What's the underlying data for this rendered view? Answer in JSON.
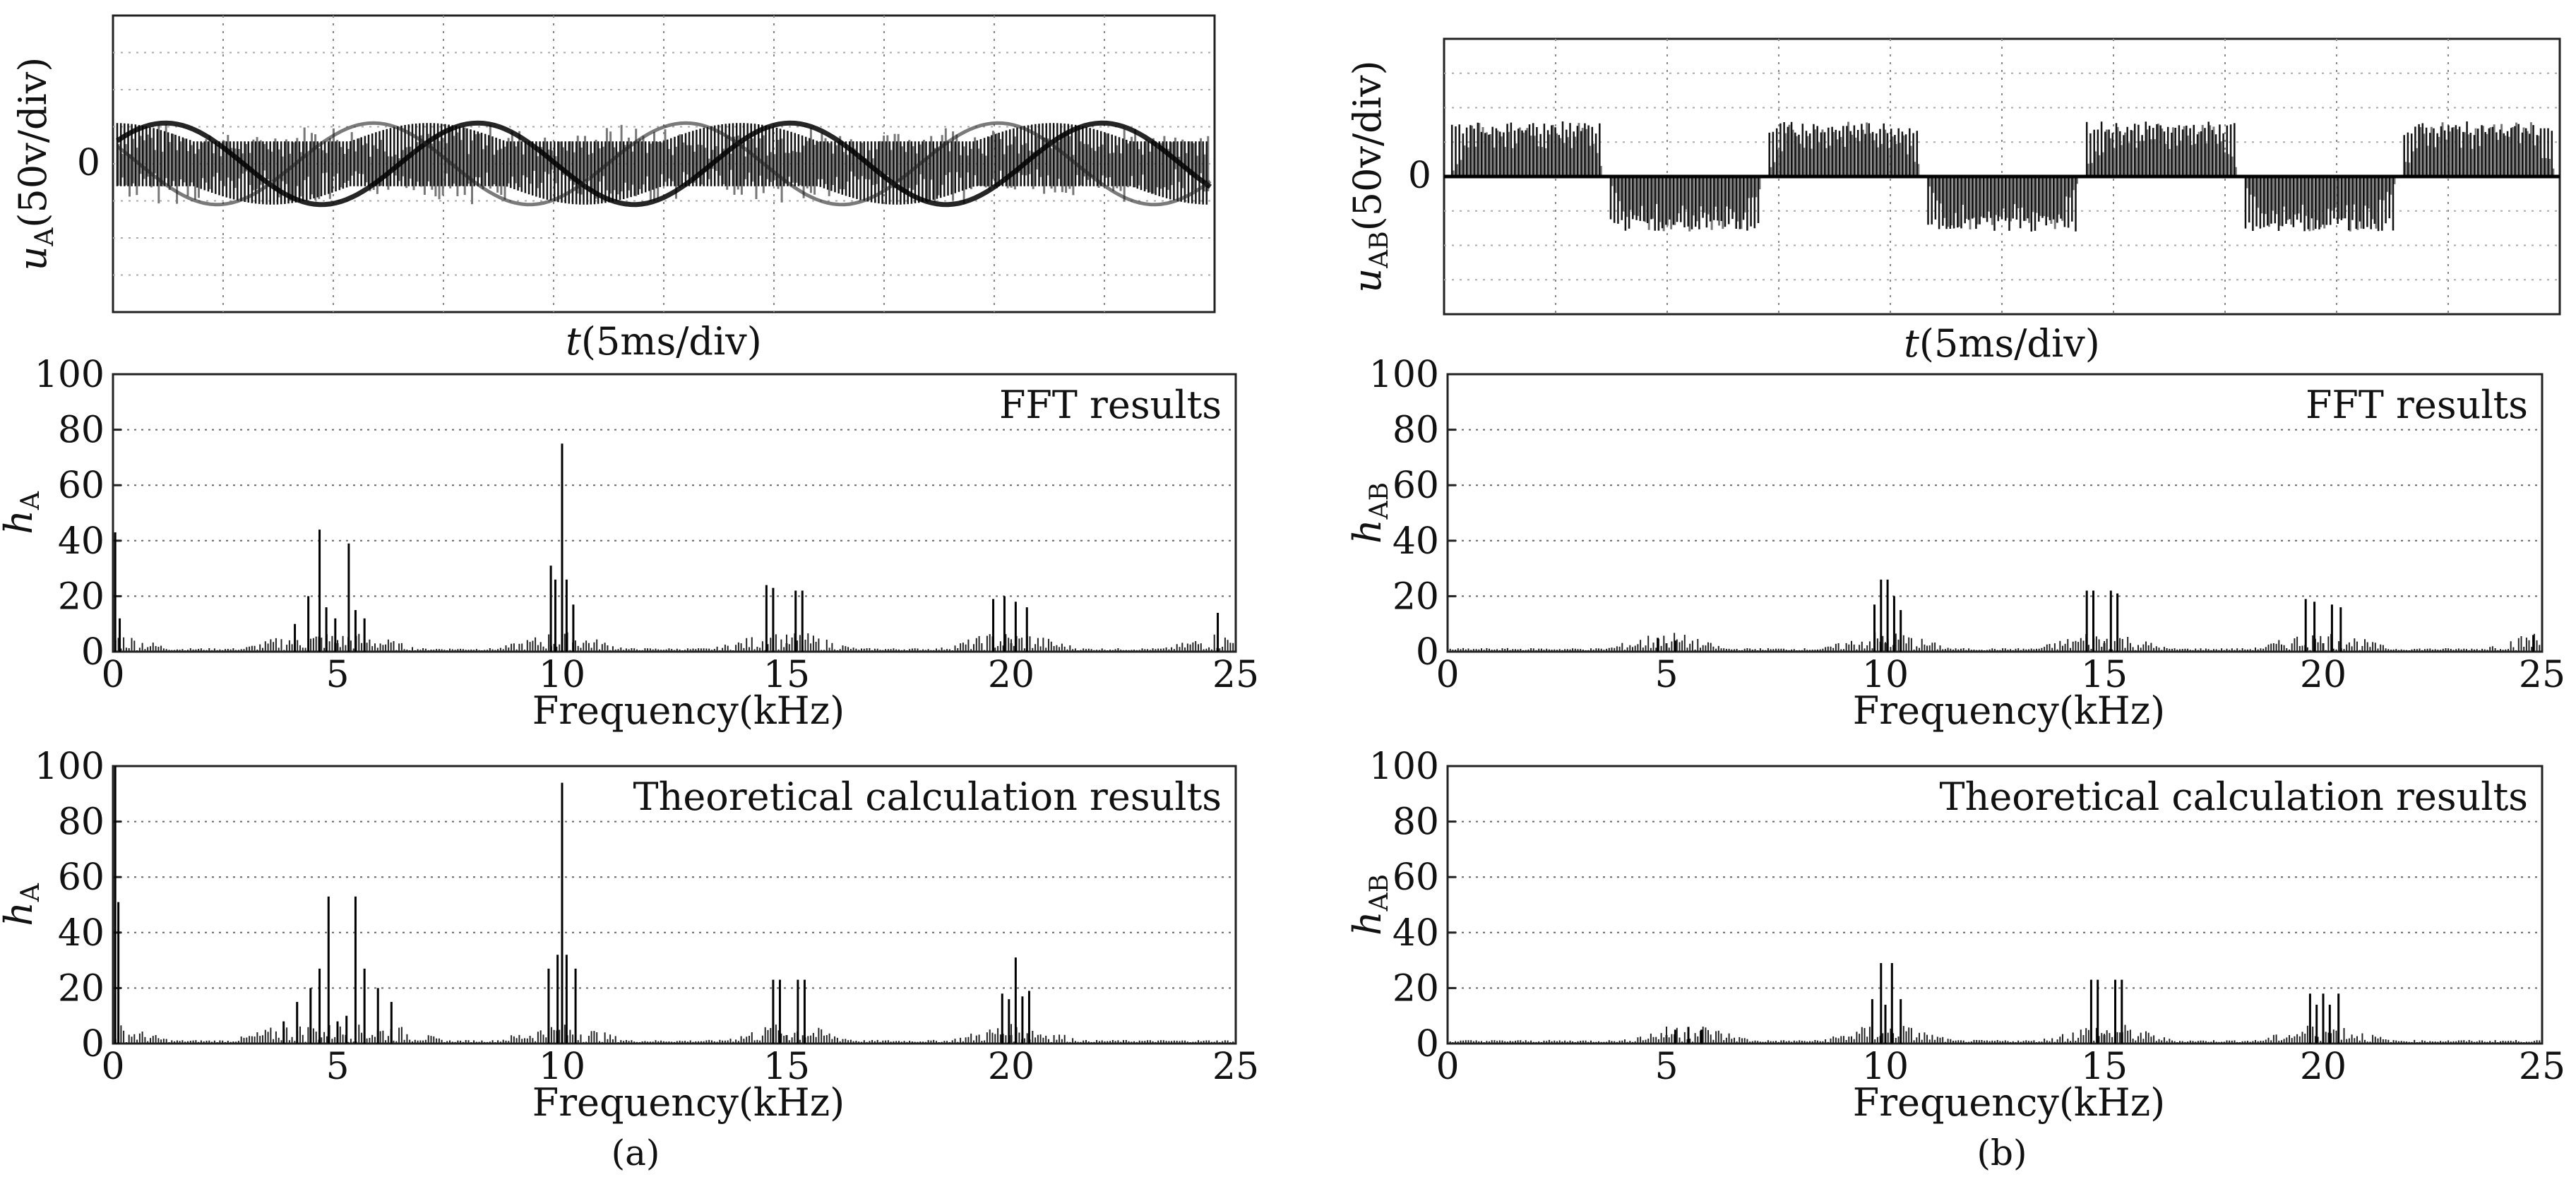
{
  "figure": {
    "caption_a": "(a)",
    "caption_b": "(b)"
  },
  "chart_data": [
    {
      "id": "a-wave",
      "type": "line",
      "panel": "a",
      "title": "",
      "ylabel": "u",
      "ylabel_sub": "A",
      "ylabel_rest": "(50v/div)",
      "xlabel": "t(5ms/div)",
      "yticks": [
        {
          "value": 0,
          "label": "0"
        }
      ],
      "ylim": [
        -4,
        4
      ],
      "xlim": [
        0,
        10
      ],
      "grid": true,
      "waveform": "modulated sinusoid, three-level PWM phase voltage",
      "fundamental_cycles": 3.5,
      "envelope_amplitude_div": 1.1
    },
    {
      "id": "a-fft",
      "type": "bar",
      "panel": "a",
      "title": "FFT results",
      "ylabel": "h",
      "ylabel_sub": "A",
      "xlabel": "Frequency(kHz)",
      "xlim": [
        0,
        25
      ],
      "ylim": [
        0,
        100
      ],
      "xticks": [
        0,
        5,
        10,
        15,
        20,
        25
      ],
      "yticks": [
        0,
        20,
        40,
        60,
        80,
        100
      ],
      "grid": true,
      "x": [
        0.05,
        0.15,
        4.05,
        4.35,
        4.6,
        4.75,
        4.95,
        5.25,
        5.4,
        5.6,
        9.75,
        9.85,
        10.0,
        10.1,
        10.25,
        14.55,
        14.7,
        15.2,
        15.35,
        19.6,
        19.85,
        20.1,
        20.35,
        24.6
      ],
      "values": [
        43,
        12,
        10,
        20,
        44,
        16,
        12,
        39,
        15,
        12,
        31,
        26,
        75,
        26,
        17,
        24,
        23,
        22,
        22,
        19,
        20,
        18,
        16,
        14
      ]
    },
    {
      "id": "a-theory",
      "type": "bar",
      "panel": "a",
      "title": "Theoretical calculation results",
      "ylabel": "h",
      "ylabel_sub": "A",
      "xlabel": "Frequency(kHz)",
      "xlim": [
        0,
        25
      ],
      "ylim": [
        0,
        100
      ],
      "xticks": [
        0,
        5,
        10,
        15,
        20,
        25
      ],
      "yticks": [
        0,
        20,
        40,
        60,
        80,
        100
      ],
      "grid": true,
      "x": [
        0.05,
        0.12,
        3.8,
        4.1,
        4.4,
        4.6,
        4.8,
        5.0,
        5.2,
        5.4,
        5.6,
        5.9,
        6.2,
        9.7,
        9.9,
        10.0,
        10.1,
        10.3,
        14.7,
        14.85,
        15.25,
        15.4,
        19.8,
        19.95,
        20.1,
        20.25,
        20.4
      ],
      "values": [
        100,
        51,
        8,
        15,
        20,
        27,
        53,
        8,
        10,
        53,
        27,
        20,
        15,
        27,
        32,
        94,
        32,
        27,
        23,
        23,
        23,
        23,
        18,
        16,
        31,
        17,
        19
      ]
    },
    {
      "id": "b-wave",
      "type": "line",
      "panel": "b",
      "title": "",
      "ylabel": "u",
      "ylabel_sub": "AB",
      "ylabel_rest": "(50v/div)",
      "xlabel": "t(5ms/div)",
      "yticks": [
        {
          "value": 0,
          "label": "0"
        }
      ],
      "ylim": [
        -4,
        4
      ],
      "xlim": [
        0,
        10
      ],
      "grid": true,
      "waveform": "quasi-square PWM line voltage",
      "fundamental_cycles": 3.5,
      "envelope_amplitude_div": 1.6
    },
    {
      "id": "b-fft",
      "type": "bar",
      "panel": "b",
      "title": "FFT results",
      "ylabel": "h",
      "ylabel_sub": "AB",
      "xlabel": "Frequency(kHz)",
      "xlim": [
        0,
        25
      ],
      "ylim": [
        0,
        100
      ],
      "xticks": [
        0,
        5,
        10,
        15,
        20,
        25
      ],
      "yticks": [
        0,
        20,
        40,
        60,
        80,
        100
      ],
      "grid": true,
      "x": [
        4.8,
        5.2,
        9.75,
        9.9,
        10.05,
        10.2,
        10.35,
        14.6,
        14.75,
        15.15,
        15.3,
        19.6,
        19.8,
        20.2,
        20.4,
        24.8
      ],
      "values": [
        5,
        4,
        17,
        26,
        26,
        20,
        15,
        22,
        22,
        22,
        21,
        19,
        18,
        17,
        16,
        6
      ]
    },
    {
      "id": "b-theory",
      "type": "bar",
      "panel": "b",
      "title": "Theoretical calculation results",
      "ylabel": "h",
      "ylabel_sub": "AB",
      "xlabel": "Frequency(kHz)",
      "xlim": [
        0,
        25
      ],
      "ylim": [
        0,
        100
      ],
      "xticks": [
        0,
        5,
        10,
        15,
        20,
        25
      ],
      "yticks": [
        0,
        20,
        40,
        60,
        80,
        100
      ],
      "grid": true,
      "x": [
        5.2,
        5.5,
        5.8,
        9.7,
        9.9,
        10.0,
        10.15,
        10.35,
        14.7,
        14.85,
        15.25,
        15.4,
        19.7,
        19.85,
        20.0,
        20.15,
        20.35
      ],
      "values": [
        5,
        6,
        5,
        16,
        29,
        14,
        29,
        16,
        23,
        23,
        23,
        23,
        18,
        14,
        18,
        14,
        18
      ]
    }
  ]
}
